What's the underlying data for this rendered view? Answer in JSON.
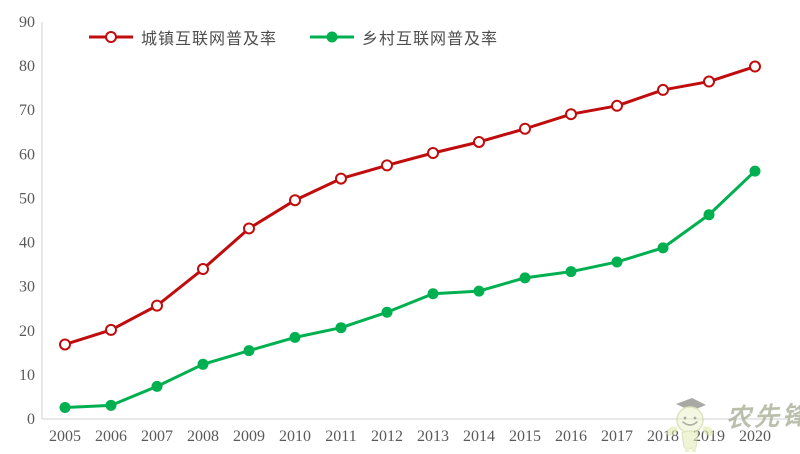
{
  "chart_data": {
    "type": "line",
    "title": "",
    "xlabel": "",
    "ylabel": "",
    "categories": [
      "2005",
      "2006",
      "2007",
      "2008",
      "2009",
      "2010",
      "2011",
      "2012",
      "2013",
      "2014",
      "2015",
      "2016",
      "2017",
      "2018",
      "2019",
      "2020"
    ],
    "series": [
      {
        "name": "城镇互联网普及率",
        "color": "#c00c0c",
        "marker": "open-circle",
        "values": [
          16.9,
          20.2,
          25.7,
          34.0,
          43.2,
          49.6,
          54.5,
          57.5,
          60.3,
          62.8,
          65.8,
          69.1,
          71.0,
          74.6,
          76.5,
          79.9
        ]
      },
      {
        "name": "乡村互联网普及率",
        "color": "#00b050",
        "marker": "filled-circle",
        "values": [
          2.6,
          3.1,
          7.4,
          12.4,
          15.5,
          18.5,
          20.7,
          24.2,
          28.4,
          29.0,
          32.0,
          33.4,
          35.6,
          38.8,
          46.3,
          56.2
        ]
      }
    ],
    "ylim": [
      0,
      90
    ],
    "y_tick_step": 10,
    "grid": false,
    "legend_position": "top-left",
    "axis_color": "#d9d9d9",
    "tick_label_color": "#595959"
  },
  "watermark": {
    "text": "农先锋"
  }
}
